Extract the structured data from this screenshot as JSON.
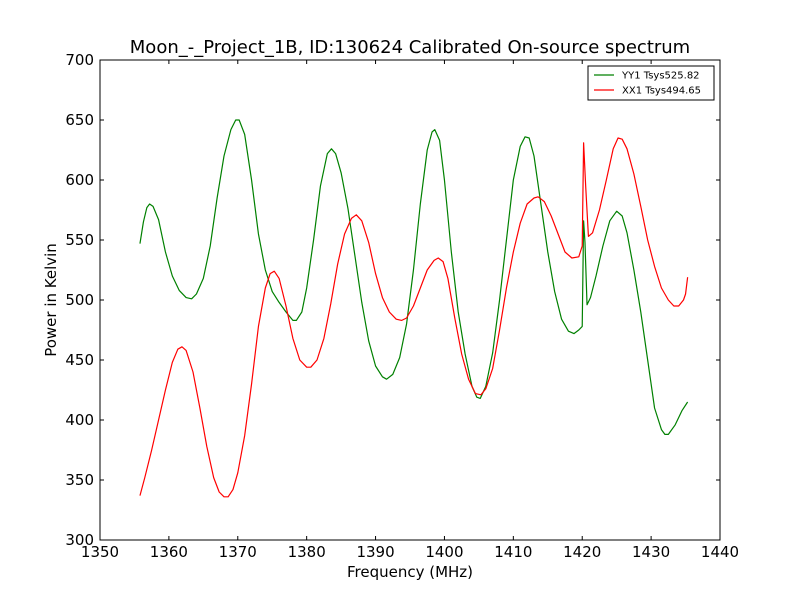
{
  "chart_data": {
    "type": "line",
    "title": "Moon_-_Project_1B, ID:130624 Calibrated On-source spectrum",
    "xlabel": "Frequency (MHz)",
    "ylabel": "Power in Kelvin",
    "xlim": [
      1350,
      1440
    ],
    "ylim": [
      300,
      700
    ],
    "xticks": [
      1350,
      1360,
      1370,
      1380,
      1390,
      1400,
      1410,
      1420,
      1430,
      1440
    ],
    "yticks": [
      300,
      350,
      400,
      450,
      500,
      550,
      600,
      650,
      700
    ],
    "grid": false,
    "legend": {
      "placement": "top-right"
    },
    "series": [
      {
        "name": "YY1 Tsys525.82",
        "color": "#008000",
        "points": [
          [
            1355.8,
            547
          ],
          [
            1356.3,
            565
          ],
          [
            1356.8,
            577
          ],
          [
            1357.2,
            580
          ],
          [
            1357.7,
            578
          ],
          [
            1358.5,
            567
          ],
          [
            1359.5,
            540
          ],
          [
            1360.5,
            520
          ],
          [
            1361.5,
            508
          ],
          [
            1362.5,
            502
          ],
          [
            1363.3,
            501
          ],
          [
            1364.0,
            505
          ],
          [
            1365.0,
            518
          ],
          [
            1366.0,
            545
          ],
          [
            1367.0,
            585
          ],
          [
            1368.0,
            620
          ],
          [
            1369.0,
            642
          ],
          [
            1369.7,
            650
          ],
          [
            1370.2,
            650
          ],
          [
            1371.0,
            638
          ],
          [
            1372.0,
            600
          ],
          [
            1373.0,
            555
          ],
          [
            1374.0,
            525
          ],
          [
            1375.0,
            507
          ],
          [
            1376.0,
            498
          ],
          [
            1377.0,
            490
          ],
          [
            1378.0,
            483
          ],
          [
            1378.5,
            483
          ],
          [
            1379.3,
            490
          ],
          [
            1380.0,
            510
          ],
          [
            1381.0,
            550
          ],
          [
            1382.0,
            595
          ],
          [
            1383.0,
            622
          ],
          [
            1383.6,
            626
          ],
          [
            1384.2,
            622
          ],
          [
            1385.0,
            606
          ],
          [
            1386.0,
            576
          ],
          [
            1387.0,
            537
          ],
          [
            1388.0,
            498
          ],
          [
            1389.0,
            466
          ],
          [
            1390.0,
            445
          ],
          [
            1391.0,
            436
          ],
          [
            1391.6,
            434
          ],
          [
            1392.5,
            438
          ],
          [
            1393.5,
            452
          ],
          [
            1394.5,
            480
          ],
          [
            1395.5,
            525
          ],
          [
            1396.5,
            580
          ],
          [
            1397.5,
            625
          ],
          [
            1398.2,
            640
          ],
          [
            1398.6,
            642
          ],
          [
            1399.3,
            633
          ],
          [
            1400.0,
            600
          ],
          [
            1401.0,
            540
          ],
          [
            1402.0,
            490
          ],
          [
            1403.0,
            455
          ],
          [
            1404.0,
            428
          ],
          [
            1404.7,
            419
          ],
          [
            1405.2,
            418
          ],
          [
            1406.0,
            428
          ],
          [
            1407.0,
            456
          ],
          [
            1408.0,
            500
          ],
          [
            1409.0,
            550
          ],
          [
            1410.0,
            600
          ],
          [
            1411.0,
            628
          ],
          [
            1411.7,
            636
          ],
          [
            1412.3,
            635
          ],
          [
            1413.0,
            620
          ],
          [
            1414.0,
            580
          ],
          [
            1415.0,
            540
          ],
          [
            1416.0,
            507
          ],
          [
            1417.0,
            484
          ],
          [
            1418.0,
            474
          ],
          [
            1418.8,
            472
          ],
          [
            1419.5,
            475
          ],
          [
            1420.0,
            478
          ],
          [
            1420.2,
            566
          ],
          [
            1420.4,
            548
          ],
          [
            1420.7,
            496
          ],
          [
            1421.2,
            502
          ],
          [
            1422.0,
            520
          ],
          [
            1423.0,
            545
          ],
          [
            1424.0,
            566
          ],
          [
            1425.0,
            574
          ],
          [
            1425.8,
            570
          ],
          [
            1426.5,
            556
          ],
          [
            1427.5,
            525
          ],
          [
            1428.5,
            490
          ],
          [
            1429.5,
            450
          ],
          [
            1430.5,
            410
          ],
          [
            1431.5,
            392
          ],
          [
            1432.0,
            388
          ],
          [
            1432.5,
            388
          ],
          [
            1433.5,
            396
          ],
          [
            1434.5,
            408
          ],
          [
            1435.3,
            415
          ]
        ]
      },
      {
        "name": "XX1 Tsys494.65",
        "color": "#ff0000",
        "points": [
          [
            1355.8,
            337
          ],
          [
            1356.5,
            352
          ],
          [
            1357.5,
            375
          ],
          [
            1358.5,
            400
          ],
          [
            1359.5,
            425
          ],
          [
            1360.5,
            448
          ],
          [
            1361.3,
            459
          ],
          [
            1361.9,
            461
          ],
          [
            1362.5,
            458
          ],
          [
            1363.5,
            440
          ],
          [
            1364.5,
            410
          ],
          [
            1365.5,
            378
          ],
          [
            1366.5,
            352
          ],
          [
            1367.3,
            340
          ],
          [
            1368.0,
            336
          ],
          [
            1368.6,
            336
          ],
          [
            1369.3,
            342
          ],
          [
            1370.0,
            356
          ],
          [
            1371.0,
            387
          ],
          [
            1372.0,
            430
          ],
          [
            1373.0,
            478
          ],
          [
            1374.0,
            510
          ],
          [
            1374.7,
            522
          ],
          [
            1375.3,
            524
          ],
          [
            1376.0,
            518
          ],
          [
            1377.0,
            495
          ],
          [
            1378.0,
            468
          ],
          [
            1379.0,
            450
          ],
          [
            1380.0,
            444
          ],
          [
            1380.6,
            444
          ],
          [
            1381.5,
            450
          ],
          [
            1382.5,
            468
          ],
          [
            1383.5,
            497
          ],
          [
            1384.5,
            530
          ],
          [
            1385.5,
            555
          ],
          [
            1386.5,
            568
          ],
          [
            1387.2,
            571
          ],
          [
            1388.0,
            566
          ],
          [
            1389.0,
            548
          ],
          [
            1390.0,
            522
          ],
          [
            1391.0,
            502
          ],
          [
            1392.0,
            490
          ],
          [
            1393.0,
            484
          ],
          [
            1393.8,
            483
          ],
          [
            1394.5,
            485
          ],
          [
            1395.5,
            495
          ],
          [
            1396.5,
            510
          ],
          [
            1397.5,
            525
          ],
          [
            1398.5,
            533
          ],
          [
            1399.1,
            535
          ],
          [
            1399.8,
            532
          ],
          [
            1400.5,
            518
          ],
          [
            1401.5,
            485
          ],
          [
            1402.5,
            455
          ],
          [
            1403.5,
            434
          ],
          [
            1404.5,
            422
          ],
          [
            1405.3,
            421
          ],
          [
            1406.0,
            426
          ],
          [
            1407.0,
            443
          ],
          [
            1408.0,
            475
          ],
          [
            1409.0,
            510
          ],
          [
            1410.0,
            540
          ],
          [
            1411.0,
            564
          ],
          [
            1412.0,
            580
          ],
          [
            1413.0,
            585
          ],
          [
            1413.6,
            586
          ],
          [
            1414.5,
            582
          ],
          [
            1415.5,
            570
          ],
          [
            1416.5,
            555
          ],
          [
            1417.5,
            540
          ],
          [
            1418.5,
            535
          ],
          [
            1419.5,
            536
          ],
          [
            1420.0,
            545
          ],
          [
            1420.2,
            631
          ],
          [
            1420.5,
            595
          ],
          [
            1420.9,
            553
          ],
          [
            1421.5,
            556
          ],
          [
            1422.5,
            575
          ],
          [
            1423.5,
            600
          ],
          [
            1424.5,
            626
          ],
          [
            1425.2,
            635
          ],
          [
            1425.8,
            634
          ],
          [
            1426.5,
            626
          ],
          [
            1427.5,
            605
          ],
          [
            1428.5,
            578
          ],
          [
            1429.5,
            550
          ],
          [
            1430.5,
            528
          ],
          [
            1431.5,
            510
          ],
          [
            1432.5,
            500
          ],
          [
            1433.3,
            495
          ],
          [
            1434.0,
            495
          ],
          [
            1434.7,
            500
          ],
          [
            1435.0,
            505
          ],
          [
            1435.3,
            519
          ]
        ]
      }
    ]
  }
}
